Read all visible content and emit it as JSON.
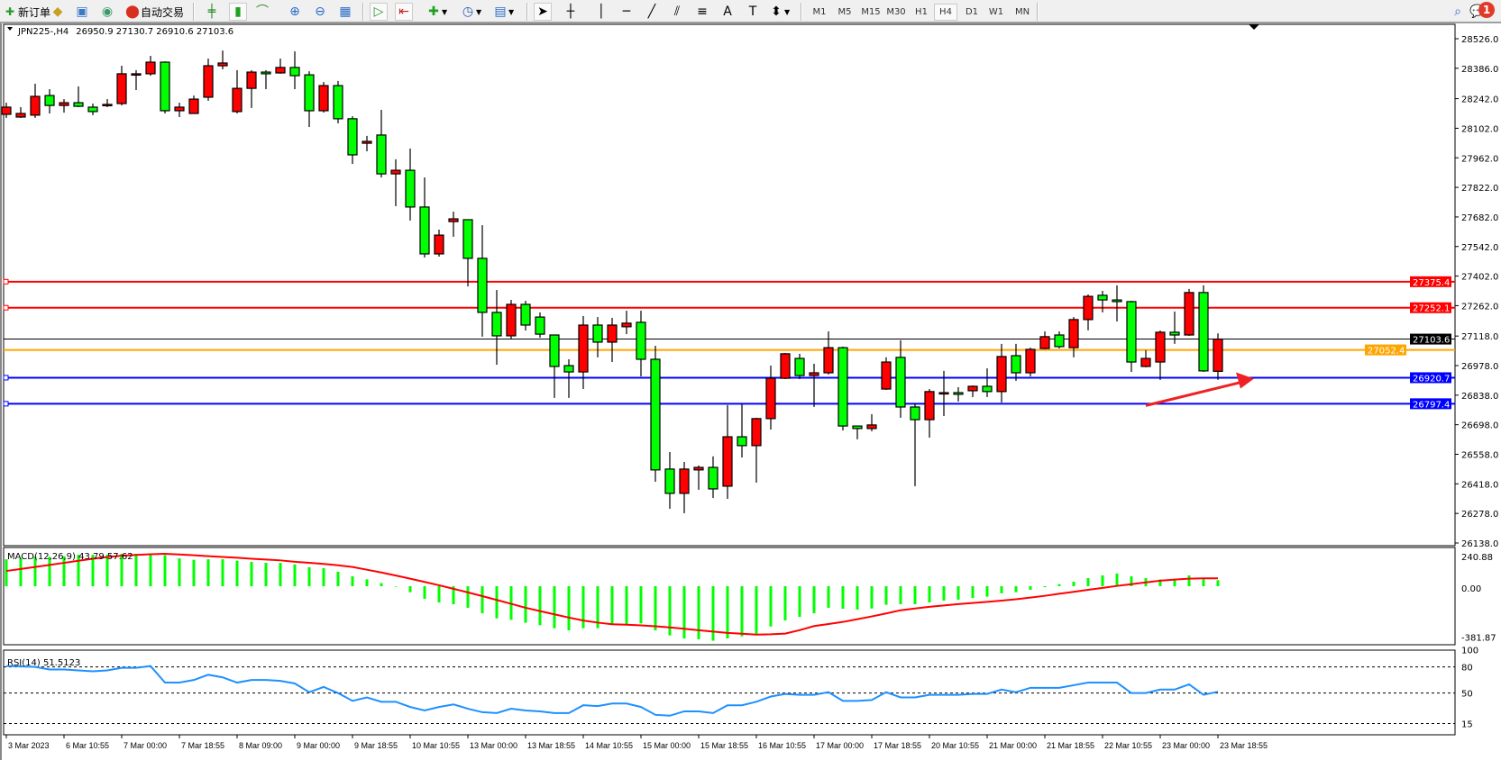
{
  "toolbar": {
    "new_order": "新订单",
    "auto_trading": "自动交易",
    "timeframes": [
      "M1",
      "M5",
      "M15",
      "M30",
      "H1",
      "H4",
      "D1",
      "W1",
      "MN"
    ],
    "active_timeframe": "H4",
    "notification_count": "1",
    "icons": [
      "new-order-icon",
      "market-watch-icon",
      "navigator-icon",
      "signals-icon",
      "auto-trading-icon",
      "bar-chart-icon",
      "candlestick-icon",
      "line-chart-icon",
      "zoom-in-icon",
      "zoom-out-icon",
      "tile-windows-icon",
      "auto-scroll-icon",
      "chart-shift-icon",
      "new-chart-icon",
      "periods-clock-icon",
      "templates-icon",
      "cursor-icon",
      "crosshair-icon",
      "vertical-line-icon",
      "horizontal-line-icon",
      "trendline-icon",
      "equidistant-channel-icon",
      "fibonacci-icon",
      "text-icon",
      "text-label-icon",
      "arrows-icon",
      "search-icon",
      "notifications-icon"
    ]
  },
  "header": {
    "symbol": "JPN225-,H4",
    "ohlc_text": "26950.9 27130.7 26910.6 27103.6"
  },
  "colors": {
    "bull": "#ff0000",
    "bear": "#00ff00",
    "resistance": "#ff0000",
    "support": "#0000ff",
    "bid": "#000000",
    "ask": "#ffa500",
    "macd_hist": "#00ff00",
    "signal": "#ff0000",
    "rsi": "#1e90ff"
  },
  "chart_data": [
    {
      "type": "candlestick",
      "title": "JPN225-,H4",
      "ylim": [
        26138.0,
        28526.0
      ],
      "y_ticks": [
        "28526.0",
        "28386.0",
        "28242.0",
        "28102.0",
        "27962.0",
        "27822.0",
        "27682.0",
        "27542.0",
        "27402.0",
        "27262.0",
        "27118.0",
        "26978.0",
        "26838.0",
        "26698.0",
        "26558.0",
        "26418.0",
        "26278.0",
        "26138.0"
      ],
      "x_ticks": [
        "3 Mar 2023",
        "6 Mar 10:55",
        "7 Mar 00:00",
        "7 Mar 18:55",
        "8 Mar 09:00",
        "9 Mar 00:00",
        "9 Mar 18:55",
        "10 Mar 10:55",
        "13 Mar 00:00",
        "13 Mar 18:55",
        "14 Mar 10:55",
        "15 Mar 00:00",
        "15 Mar 18:55",
        "16 Mar 10:55",
        "17 Mar 00:00",
        "17 Mar 18:55",
        "20 Mar 10:55",
        "21 Mar 00:00",
        "21 Mar 18:55",
        "22 Mar 10:55",
        "23 Mar 00:00",
        "23 Mar 18:55"
      ],
      "x_tick_every": 4,
      "ohlc": [
        [
          28168,
          28223,
          28151,
          28202
        ],
        [
          28155,
          28202,
          28151,
          28172
        ],
        [
          28164,
          28313,
          28151,
          28253
        ],
        [
          28257,
          28287,
          28172,
          28210
        ],
        [
          28210,
          28240,
          28176,
          28223
        ],
        [
          28223,
          28300,
          28202,
          28206
        ],
        [
          28202,
          28219,
          28164,
          28181
        ],
        [
          28215,
          28240,
          28202,
          28215
        ],
        [
          28219,
          28398,
          28210,
          28360
        ],
        [
          28360,
          28377,
          28283,
          28360
        ],
        [
          28360,
          28445,
          28351,
          28415
        ],
        [
          28415,
          28419,
          28172,
          28185
        ],
        [
          28185,
          28223,
          28155,
          28202
        ],
        [
          28172,
          28257,
          28172,
          28240
        ],
        [
          28249,
          28432,
          28232,
          28398
        ],
        [
          28398,
          28470,
          28381,
          28411
        ],
        [
          28181,
          28377,
          28172,
          28291
        ],
        [
          28291,
          28377,
          28198,
          28368
        ],
        [
          28368,
          28377,
          28287,
          28360
        ],
        [
          28364,
          28432,
          28360,
          28390
        ],
        [
          28390,
          28466,
          28287,
          28351
        ],
        [
          28355,
          28372,
          28108,
          28185
        ],
        [
          28185,
          28321,
          28176,
          28304
        ],
        [
          28304,
          28326,
          28125,
          28147
        ],
        [
          28147,
          28159,
          27933,
          27976
        ],
        [
          28031,
          28066,
          27993,
          28040
        ],
        [
          28070,
          28189,
          27869,
          27886
        ],
        [
          27886,
          27955,
          27733,
          27903
        ],
        [
          27903,
          28006,
          27665,
          27729
        ],
        [
          27729,
          27869,
          27490,
          27507
        ],
        [
          27507,
          27622,
          27494,
          27596
        ],
        [
          27660,
          27707,
          27588,
          27673
        ],
        [
          27669,
          27669,
          27353,
          27486
        ],
        [
          27486,
          27643,
          27115,
          27230
        ],
        [
          27230,
          27336,
          26982,
          27119
        ],
        [
          27119,
          27289,
          27106,
          27268
        ],
        [
          27268,
          27285,
          27144,
          27170
        ],
        [
          27208,
          27230,
          27110,
          27127
        ],
        [
          27123,
          27123,
          26825,
          26974
        ],
        [
          26978,
          27008,
          26825,
          26948
        ],
        [
          26948,
          27213,
          26867,
          27170
        ],
        [
          27170,
          27208,
          27017,
          27089
        ],
        [
          27089,
          27204,
          26995,
          27170
        ],
        [
          27162,
          27238,
          27127,
          27179
        ],
        [
          27183,
          27238,
          26927,
          27008
        ],
        [
          27008,
          27072,
          26428,
          26484
        ],
        [
          26488,
          26569,
          26300,
          26373
        ],
        [
          26373,
          26522,
          26279,
          26488
        ],
        [
          26484,
          26505,
          26390,
          26496
        ],
        [
          26496,
          26548,
          26351,
          26394
        ],
        [
          26407,
          26791,
          26347,
          26641
        ],
        [
          26641,
          26795,
          26543,
          26599
        ],
        [
          26599,
          26731,
          26424,
          26727
        ],
        [
          26727,
          26978,
          26675,
          26918
        ],
        [
          26918,
          27038,
          26914,
          27034
        ],
        [
          27012,
          27034,
          26914,
          26931
        ],
        [
          26931,
          26987,
          26782,
          26944
        ],
        [
          26944,
          27140,
          26936,
          27063
        ],
        [
          27063,
          27068,
          26671,
          26692
        ],
        [
          26692,
          26692,
          26629,
          26680
        ],
        [
          26680,
          26748,
          26667,
          26697
        ],
        [
          26867,
          27017,
          26863,
          26995
        ],
        [
          27017,
          27098,
          26731,
          26782
        ],
        [
          26782,
          26799,
          26407,
          26722
        ],
        [
          26722,
          26867,
          26637,
          26855
        ],
        [
          26850,
          26953,
          26739,
          26850
        ],
        [
          26850,
          26876,
          26808,
          26842
        ],
        [
          26859,
          26884,
          26829,
          26880
        ],
        [
          26880,
          26965,
          26829,
          26855
        ],
        [
          26855,
          27081,
          26803,
          27021
        ],
        [
          27025,
          27081,
          26906,
          26944
        ],
        [
          26944,
          27063,
          26927,
          27055
        ],
        [
          27059,
          27140,
          27055,
          27115
        ],
        [
          27123,
          27140,
          27059,
          27068
        ],
        [
          27063,
          27208,
          27017,
          27196
        ],
        [
          27196,
          27315,
          27145,
          27306
        ],
        [
          27311,
          27332,
          27230,
          27289
        ],
        [
          27289,
          27358,
          27187,
          27281
        ],
        [
          27281,
          27285,
          26948,
          26995
        ],
        [
          26974,
          27051,
          26970,
          27012
        ],
        [
          26995,
          27144,
          26910,
          27136
        ],
        [
          27136,
          27234,
          27081,
          27123
        ],
        [
          27123,
          27341,
          27119,
          27324
        ],
        [
          27324,
          27358,
          26948,
          26953
        ],
        [
          26950.9,
          27130.7,
          26910.6,
          27103.6
        ]
      ],
      "levels": [
        {
          "price": 27375.4,
          "label": "27375.4",
          "kind": "resistance"
        },
        {
          "price": 27252.1,
          "label": "27252.1",
          "kind": "resistance"
        },
        {
          "price": 27103.6,
          "label": "27103.6",
          "kind": "bid"
        },
        {
          "price": 27052.4,
          "label": "27052.4",
          "kind": "ask"
        },
        {
          "price": 26920.7,
          "label": "26920.7",
          "kind": "support"
        },
        {
          "price": 26797.4,
          "label": "26797.4",
          "kind": "support"
        }
      ],
      "annotation_arrow": {
        "from": {
          "candle": 79,
          "price": 26797.4
        },
        "to": {
          "candle": 86.5,
          "price": 26920.7
        },
        "color": "#ee2222"
      }
    },
    {
      "type": "bar+line",
      "title": "MACD(12,26,9) 43.79 57.62",
      "ylim": [
        -381.87,
        240.88
      ],
      "y_ticks": [
        "240.88",
        "0.00",
        "-381.87"
      ],
      "macd": [
        196,
        203,
        214,
        214,
        218,
        229,
        229,
        229,
        236,
        236,
        236,
        225,
        203,
        192,
        196,
        196,
        186,
        177,
        170,
        170,
        159,
        138,
        131,
        105,
        72,
        50,
        22,
        -4,
        -44,
        -92,
        -118,
        -131,
        -157,
        -197,
        -234,
        -245,
        -266,
        -284,
        -306,
        -321,
        -306,
        -306,
        -277,
        -277,
        -271,
        -321,
        -358,
        -380,
        -386,
        -397,
        -380,
        -365,
        -349,
        -293,
        -249,
        -223,
        -197,
        -157,
        -164,
        -170,
        -162,
        -135,
        -131,
        -131,
        -118,
        -105,
        -98,
        -85,
        -76,
        -52,
        -44,
        -26,
        -7,
        15,
        33,
        59,
        79,
        92,
        72,
        59,
        50,
        50,
        79,
        52,
        43.79
      ],
      "signal": [
        111,
        125,
        140,
        155,
        170,
        185,
        200,
        212,
        222,
        228,
        233,
        236,
        231,
        225,
        219,
        213,
        207,
        200,
        194,
        188,
        178,
        170,
        162,
        152,
        140,
        120,
        100,
        78,
        55,
        31,
        7,
        -19,
        -45,
        -72,
        -100,
        -128,
        -157,
        -181,
        -205,
        -228,
        -250,
        -265,
        -277,
        -280,
        -285,
        -292,
        -300,
        -310,
        -320,
        -330,
        -340,
        -346,
        -352,
        -350,
        -345,
        -320,
        -290,
        -275,
        -260,
        -240,
        -220,
        -198,
        -175,
        -162,
        -150,
        -140,
        -130,
        -122,
        -114,
        -105,
        -95,
        -83,
        -70,
        -55,
        -41,
        -26,
        -12,
        2,
        15,
        28,
        40,
        48,
        55,
        57,
        57.62
      ]
    },
    {
      "type": "line",
      "title": "RSI(14) 51.5123",
      "ylim": [
        0,
        100
      ],
      "y_ticks": [
        "100",
        "80",
        "50",
        "15"
      ],
      "levels": [
        80,
        50,
        15
      ],
      "values": [
        81,
        80.7,
        80,
        77,
        77,
        76,
        75,
        76,
        79,
        79,
        81,
        62,
        62,
        65,
        71,
        68,
        62,
        65,
        65,
        64,
        61,
        51,
        57,
        50,
        41,
        45,
        40,
        40,
        34,
        30,
        34,
        37,
        32,
        28,
        27,
        32,
        30,
        29,
        27,
        27,
        36,
        35,
        38,
        38,
        34,
        25,
        24,
        29,
        29,
        27,
        36,
        36,
        40,
        46,
        49,
        48,
        48,
        51,
        41,
        41,
        42,
        51,
        45,
        45,
        48,
        48,
        48,
        49,
        49,
        54,
        51,
        56,
        56,
        56,
        59,
        62,
        62,
        62,
        50,
        50,
        54,
        54,
        60,
        48,
        51.5123
      ]
    }
  ]
}
